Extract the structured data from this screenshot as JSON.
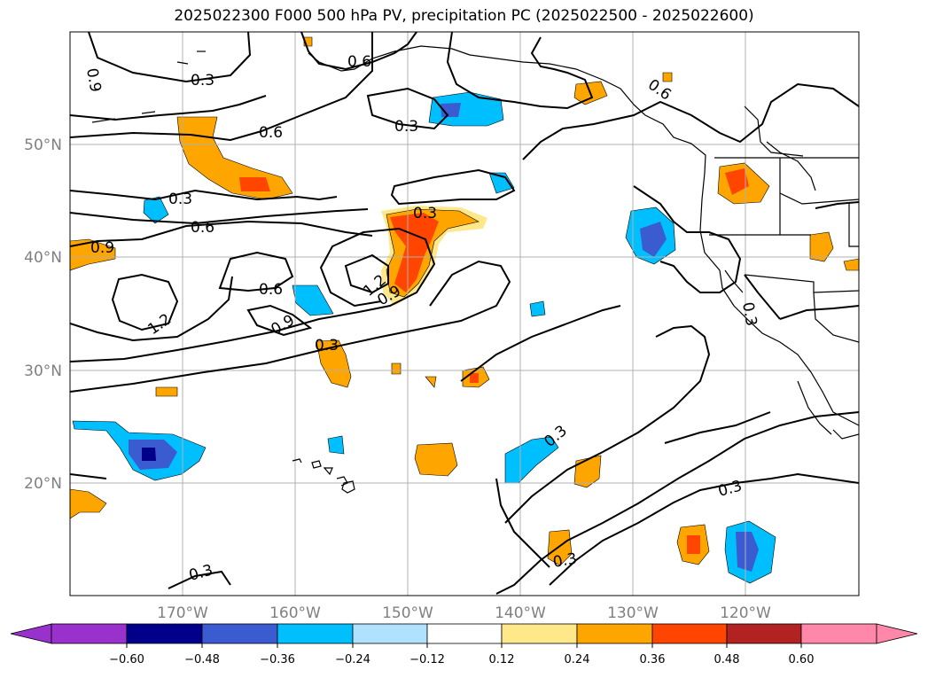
{
  "title": "2025022300 F000 500 hPa PV, precipitation PC (2025022500 - 2025022600)",
  "map": {
    "projection": "PlateCarree",
    "lon_range": [
      -180,
      -110
    ],
    "lat_range": [
      10,
      60
    ],
    "lat_labels": [
      "20°N",
      "30°N",
      "40°N",
      "50°N"
    ],
    "lon_labels": [
      "170°W",
      "160°W",
      "150°W",
      "140°W",
      "130°W",
      "120°W"
    ],
    "grid": true,
    "label_color": "#808080"
  },
  "contour_labels": [
    "0.9",
    "0.3",
    "0.6",
    "0.3",
    "0.6",
    "0.3",
    "0.6",
    "0.9",
    "0.6",
    "0.3",
    "0.6",
    "1.2",
    "0.9",
    "1.2",
    "0.9",
    "0.3",
    "0.3",
    "0.3",
    "0.3",
    "0.3",
    "0.3"
  ],
  "colorbar": {
    "ticks": [
      "−0.60",
      "−0.48",
      "−0.36",
      "−0.24",
      "−0.12",
      "0.12",
      "0.24",
      "0.36",
      "0.48",
      "0.60"
    ],
    "colors": {
      "under": "#9932cc",
      "neg_060_048": "#00008b",
      "neg_048_036": "#3b5bd1",
      "neg_036_024": "#00bfff",
      "neg_024_012": "#b0e2ff",
      "zero": "#ffffff",
      "pos_012_024": "#ffe88a",
      "pos_024_036": "#ffa500",
      "pos_036_048": "#ff4500",
      "pos_048_060": "#b22222",
      "over": "#ff88aa"
    }
  }
}
